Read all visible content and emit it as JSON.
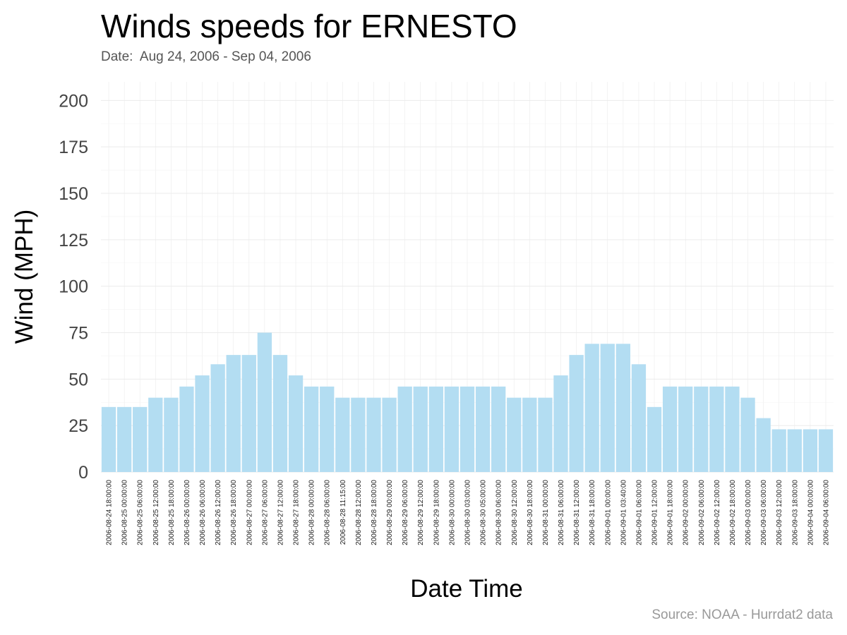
{
  "chart_data": {
    "type": "bar",
    "title": "Winds speeds for ERNESTO",
    "subtitle": "Date:  Aug 24, 2006 - Sep 04, 2006",
    "caption": "Source: NOAA - Hurrdat2 data",
    "xlabel": "Date Time",
    "ylabel": "Wind (MPH)",
    "ylim": [
      0,
      210
    ],
    "yticks": [
      0,
      25,
      50,
      75,
      100,
      125,
      150,
      175,
      200
    ],
    "grid": true,
    "bar_color": "#b3ddf2",
    "categories": [
      "2006-08-24 18:00:00",
      "2006-08-25 00:00:00",
      "2006-08-25 06:00:00",
      "2006-08-25 12:00:00",
      "2006-08-25 18:00:00",
      "2006-08-26 00:00:00",
      "2006-08-26 06:00:00",
      "2006-08-26 12:00:00",
      "2006-08-26 18:00:00",
      "2006-08-27 00:00:00",
      "2006-08-27 06:00:00",
      "2006-08-27 12:00:00",
      "2006-08-27 18:00:00",
      "2006-08-28 00:00:00",
      "2006-08-28 06:00:00",
      "2006-08-28 11:15:00",
      "2006-08-28 12:00:00",
      "2006-08-28 18:00:00",
      "2006-08-29 00:00:00",
      "2006-08-29 06:00:00",
      "2006-08-29 12:00:00",
      "2006-08-29 18:00:00",
      "2006-08-30 00:00:00",
      "2006-08-30 03:00:00",
      "2006-08-30 05:00:00",
      "2006-08-30 06:00:00",
      "2006-08-30 12:00:00",
      "2006-08-30 18:00:00",
      "2006-08-31 00:00:00",
      "2006-08-31 06:00:00",
      "2006-08-31 12:00:00",
      "2006-08-31 18:00:00",
      "2006-09-01 00:00:00",
      "2006-09-01 03:40:00",
      "2006-09-01 06:00:00",
      "2006-09-01 12:00:00",
      "2006-09-01 18:00:00",
      "2006-09-02 00:00:00",
      "2006-09-02 06:00:00",
      "2006-09-02 12:00:00",
      "2006-09-02 18:00:00",
      "2006-09-03 00:00:00",
      "2006-09-03 06:00:00",
      "2006-09-03 12:00:00",
      "2006-09-03 18:00:00",
      "2006-09-04 00:00:00",
      "2006-09-04 06:00:00"
    ],
    "values": [
      35,
      35,
      35,
      40,
      40,
      46,
      52,
      58,
      63,
      63,
      75,
      63,
      52,
      46,
      46,
      40,
      40,
      40,
      40,
      46,
      46,
      46,
      46,
      46,
      46,
      46,
      40,
      40,
      40,
      52,
      63,
      69,
      69,
      69,
      58,
      35,
      46,
      46,
      46,
      46,
      46,
      40,
      29,
      23,
      23,
      23,
      23
    ]
  }
}
